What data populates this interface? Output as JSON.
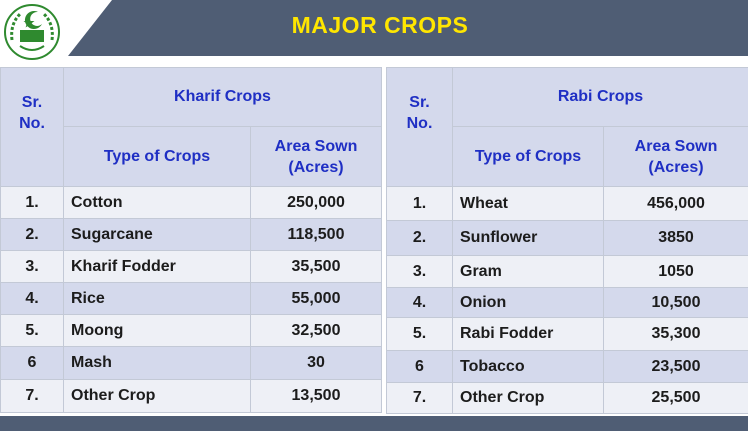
{
  "title": "MAJOR CROPS",
  "colors": {
    "header_band": "#4f5d74",
    "title": "#ffe600",
    "header_text": "#1f2fc4",
    "row_light": "#eef0f6",
    "row_dark": "#d4d9ec",
    "logo_green": "#2f8a2f"
  },
  "kharif": {
    "sr_header": "Sr.\nNo.",
    "group_header": "Kharif Crops",
    "type_header": "Type of Crops",
    "area_header": "Area Sown\n(Acres)",
    "rows": [
      {
        "sr": "1.",
        "crop": "Cotton",
        "area": "250,000"
      },
      {
        "sr": "2.",
        "crop": "Sugarcane",
        "area": "118,500"
      },
      {
        "sr": "3.",
        "crop": "Kharif Fodder",
        "area": "35,500"
      },
      {
        "sr": "4.",
        "crop": "Rice",
        "area": "55,000"
      },
      {
        "sr": "5.",
        "crop": "Moong",
        "area": "32,500"
      },
      {
        "sr": "6",
        "crop": "Mash",
        "area": "30"
      },
      {
        "sr": "7.",
        "crop": "Other Crop",
        "area": "13,500"
      }
    ]
  },
  "rabi": {
    "sr_header": "Sr.\nNo.",
    "group_header": "Rabi Crops",
    "type_header": "Type of Crops",
    "area_header": "Area Sown\n(Acres)",
    "rows": [
      {
        "sr": "1.",
        "crop": "Wheat",
        "area": "456,000"
      },
      {
        "sr": "2.",
        "crop": "Sunflower",
        "area": "3850"
      },
      {
        "sr": "3.",
        "crop": "Gram",
        "area": "1050"
      },
      {
        "sr": "4.",
        "crop": "Onion",
        "area": "10,500"
      },
      {
        "sr": "5.",
        "crop": "Rabi Fodder",
        "area": "35,300"
      },
      {
        "sr": "6",
        "crop": "Tobacco",
        "area": "23,500"
      },
      {
        "sr": "7.",
        "crop": "Other Crop",
        "area": "25,500"
      }
    ]
  }
}
